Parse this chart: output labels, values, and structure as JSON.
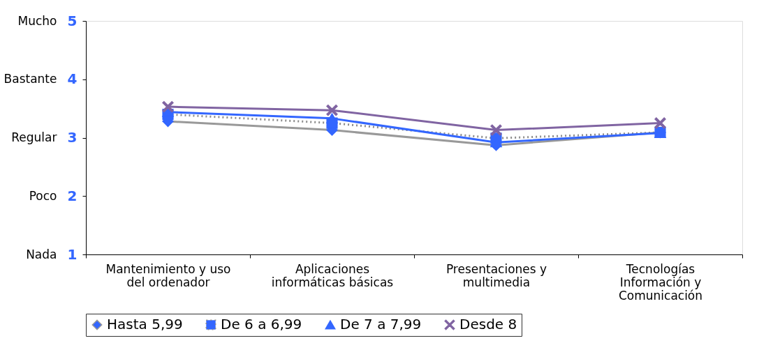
{
  "chart_data": {
    "type": "line",
    "categories": [
      "Mantenimiento y uso del ordenador",
      "Aplicaciones informáticas básicas",
      "Presentaciones y multimedia",
      "Tecnologías Información y Comunicación"
    ],
    "series": [
      {
        "name": "Hasta 5,99",
        "color": "#999999",
        "colors": [
          "#3366ff",
          "#3366ff",
          "#3366ff",
          "#3366ff"
        ],
        "marker": "diamond",
        "line_style": "solid",
        "values": [
          3.28,
          3.13,
          2.87,
          3.09
        ]
      },
      {
        "name": "De 6 a 6,99",
        "color": "#8c8c8c",
        "colors": [
          "#3366ff",
          "#3366ff",
          "#3366ff",
          "#3366ff"
        ],
        "marker": "square",
        "line_style": "dotted",
        "values": [
          3.4,
          3.25,
          2.99,
          3.09
        ]
      },
      {
        "name": "De 7 a 7,99",
        "color": "#3366ff",
        "colors": [
          "#3366ff",
          "#3366ff",
          "#3366ff",
          "#3366ff"
        ],
        "marker": "triangle",
        "line_style": "solid",
        "values": [
          3.44,
          3.33,
          2.92,
          3.08
        ]
      },
      {
        "name": "Desde 8",
        "color": "#8064a2",
        "colors": [
          "#8064a2",
          "#8064a2",
          "#8064a2",
          "#8064a2"
        ],
        "marker": "cross",
        "line_style": "solid",
        "values": [
          3.53,
          3.47,
          3.13,
          3.25
        ]
      }
    ],
    "ylim": [
      1,
      5
    ],
    "yticks": [
      1,
      2,
      3,
      4,
      5
    ],
    "y_categories": [
      "Mucho",
      "Bastante",
      "Regular",
      "Poco",
      "Nada"
    ],
    "legend": "bottom",
    "grid": false
  }
}
